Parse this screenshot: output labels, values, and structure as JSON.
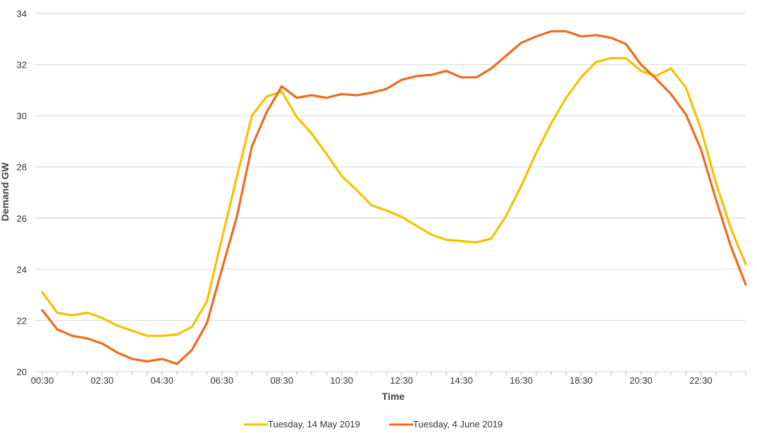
{
  "chart_data": {
    "type": "line",
    "title": "",
    "xlabel": "Time",
    "ylabel": "Demand GW",
    "ylim": [
      20,
      34
    ],
    "yticks": [
      20,
      22,
      24,
      26,
      28,
      30,
      32,
      34
    ],
    "grid": true,
    "legend": "bottom-center",
    "x": [
      "00:30",
      "01:00",
      "01:30",
      "02:00",
      "02:30",
      "03:00",
      "03:30",
      "04:00",
      "04:30",
      "05:00",
      "05:30",
      "06:00",
      "06:30",
      "07:00",
      "07:30",
      "08:00",
      "08:30",
      "09:00",
      "09:30",
      "10:00",
      "10:30",
      "11:00",
      "11:30",
      "12:00",
      "12:30",
      "13:00",
      "13:30",
      "14:00",
      "14:30",
      "15:00",
      "15:30",
      "16:00",
      "16:30",
      "17:00",
      "17:30",
      "18:00",
      "18:30",
      "19:00",
      "19:30",
      "20:00",
      "20:30",
      "21:00",
      "21:30",
      "22:00",
      "22:30",
      "23:00",
      "23:30",
      "00:00"
    ],
    "xtick_labels": [
      "00:30",
      "02:30",
      "04:30",
      "06:30",
      "08:30",
      "10:30",
      "12:30",
      "14:30",
      "16:30",
      "18:30",
      "20:30",
      "22:30"
    ],
    "series": [
      {
        "name": "Tuesday, 14 May 2019",
        "color": "#F5C200",
        "values": [
          23.1,
          22.3,
          22.2,
          22.3,
          22.1,
          21.8,
          21.6,
          21.4,
          21.4,
          21.45,
          21.75,
          22.75,
          25.2,
          27.6,
          30.0,
          30.75,
          30.95,
          29.95,
          29.3,
          28.5,
          27.65,
          27.1,
          26.5,
          26.3,
          26.05,
          25.7,
          25.35,
          25.15,
          25.1,
          25.05,
          25.2,
          26.1,
          27.25,
          28.55,
          29.7,
          30.7,
          31.5,
          32.1,
          32.25,
          32.25,
          31.75,
          31.55,
          31.85,
          31.1,
          29.5,
          27.4,
          25.6,
          24.2
        ]
      },
      {
        "name": "Tuesday, 4 June 2019",
        "color": "#F06A1F",
        "values": [
          22.4,
          21.65,
          21.4,
          21.3,
          21.1,
          20.75,
          20.5,
          20.4,
          20.5,
          20.3,
          20.85,
          21.9,
          24.0,
          26.05,
          28.8,
          30.15,
          31.15,
          30.7,
          30.8,
          30.7,
          30.85,
          30.8,
          30.9,
          31.05,
          31.4,
          31.55,
          31.6,
          31.75,
          31.5,
          31.5,
          31.85,
          32.35,
          32.85,
          33.1,
          33.3,
          33.3,
          33.1,
          33.15,
          33.05,
          32.8,
          32.0,
          31.45,
          30.85,
          30.05,
          28.7,
          26.75,
          24.9,
          23.4
        ]
      }
    ]
  }
}
